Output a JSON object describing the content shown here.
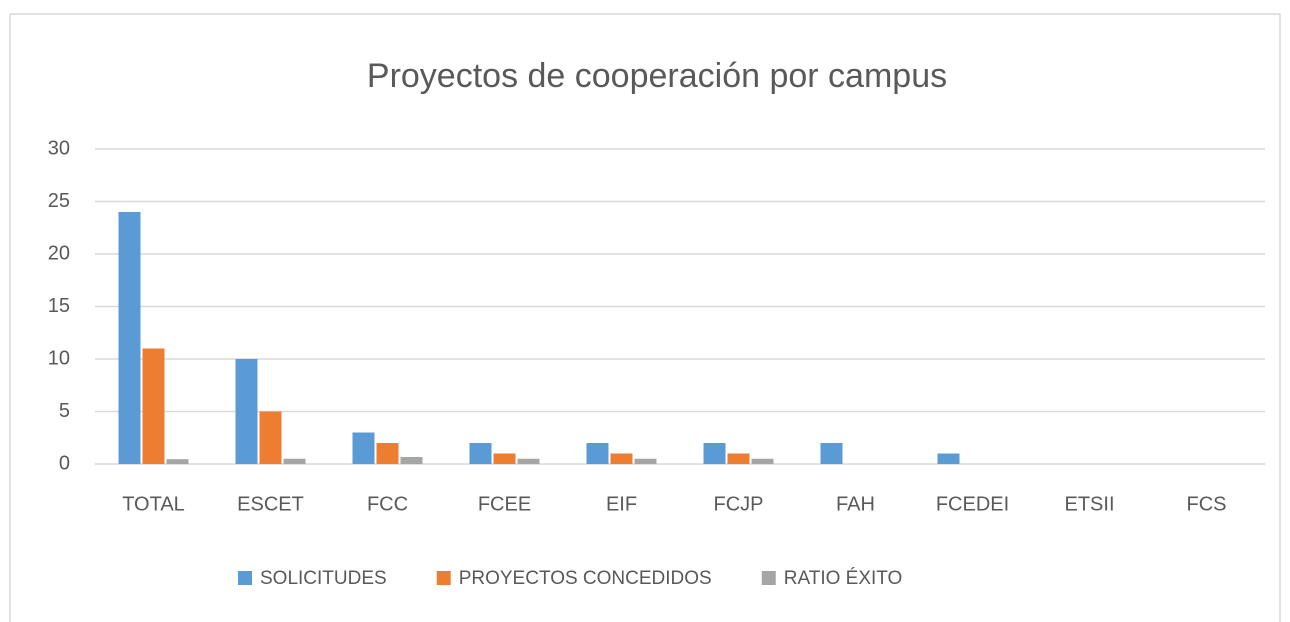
{
  "chart_data": {
    "type": "bar",
    "title": "Proyectos de cooperación por campus",
    "categories": [
      "TOTAL",
      "ESCET",
      "FCC",
      "FCEE",
      "EIF",
      "FCJP",
      "FAH",
      "FCEDEI",
      "ETSII",
      "FCS"
    ],
    "series": [
      {
        "name": "SOLICITUDES",
        "color": "#5b9bd5",
        "values": [
          24,
          10,
          3,
          2,
          2,
          2,
          2,
          1,
          0,
          0
        ]
      },
      {
        "name": "PROYECTOS CONCEDIDOS",
        "color": "#ed7d31",
        "values": [
          11,
          5,
          2,
          1,
          1,
          1,
          0,
          0,
          0,
          0
        ]
      },
      {
        "name": "RATIO ÉXITO",
        "color": "#a5a5a5",
        "values": [
          0.46,
          0.5,
          0.67,
          0.5,
          0.5,
          0.5,
          0,
          0,
          0,
          0
        ]
      }
    ],
    "ylim": [
      0,
      30
    ],
    "yticks": [
      0,
      5,
      10,
      15,
      20,
      25,
      30
    ],
    "grid": true,
    "legend": "bottom"
  }
}
